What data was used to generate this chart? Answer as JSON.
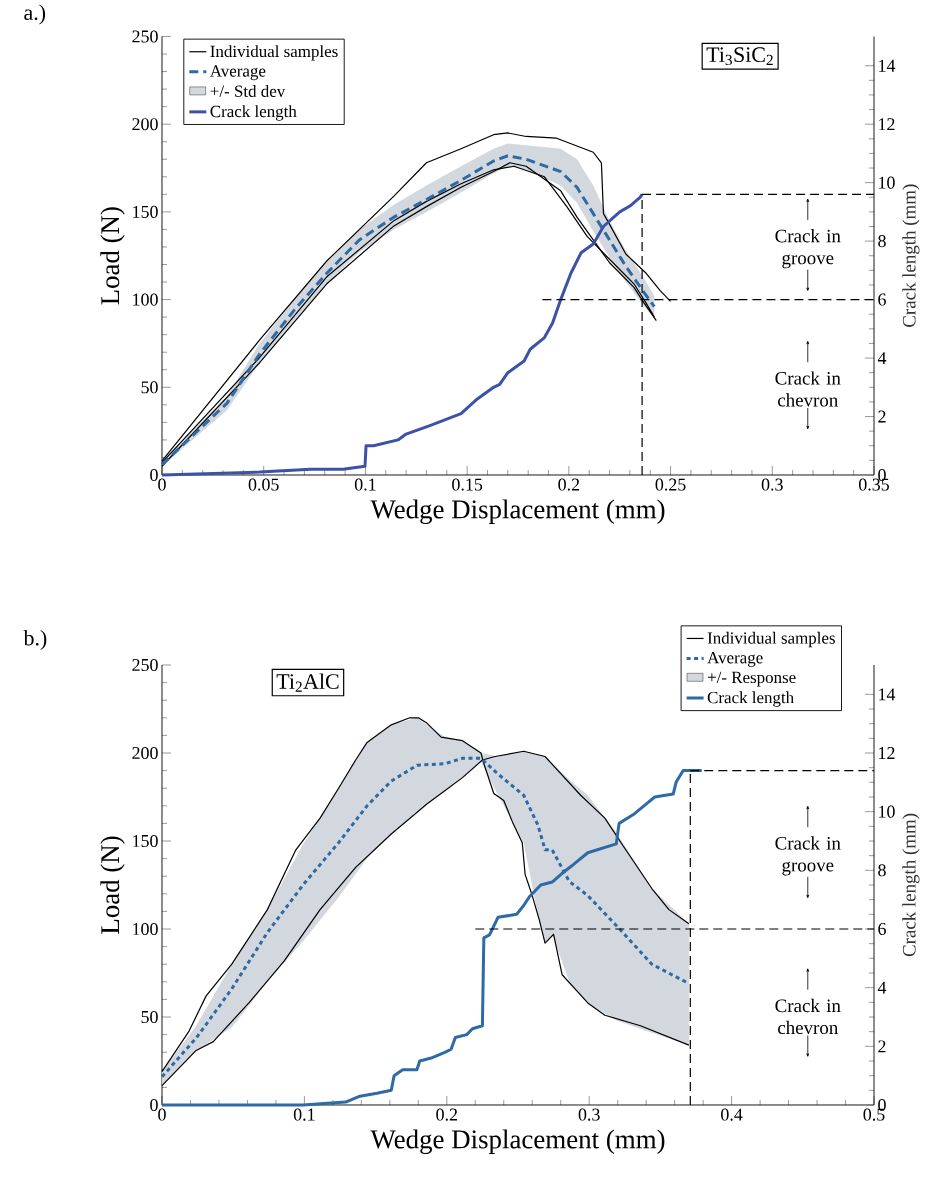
{
  "chart_data": [
    {
      "type": "line",
      "xlabel": "Wedge Displacement (mm)",
      "ylabel": "Load (N)",
      "y2label": "Crack length (mm)",
      "xlim": [
        0,
        0.35
      ],
      "xticks": [
        0,
        0.05,
        0.1,
        0.15,
        0.2,
        0.25,
        0.3,
        0.35
      ],
      "ylim": [
        0,
        250
      ],
      "yticks": [
        0,
        50,
        100,
        150,
        200,
        250
      ],
      "y2lim": [
        0,
        15
      ],
      "y2ticks": [
        0,
        2,
        4,
        6,
        8,
        10,
        12,
        14
      ],
      "legend": "top left",
      "annotations": [
        "a.)",
        "+/- Std dev",
        "Ti$_{3}$SiC$_{2}$",
        "Crack in groove",
        "Crack in chevron"
      ],
      "series": [
        {
          "name": "Individual samples",
          "color": "#000000",
          "line_style": "solid",
          "x": [
            0,
            0.048,
            0.081,
            0.114,
            0.13,
            0.147,
            0.163,
            0.17,
            0.179,
            0.194,
            0.212,
            0.216,
            0.217,
            0.219,
            0.228,
            0.238,
            0.245,
            0.25
          ],
          "values": [
            8,
            77,
            122,
            159,
            178,
            186,
            194,
            195,
            193,
            192,
            184,
            178,
            149,
            145,
            126,
            115,
            105,
            99
          ]
        },
        {
          "color": "#000000",
          "line_style": "solid",
          "x": [
            0,
            0.048,
            0.081,
            0.114,
            0.13,
            0.147,
            0.163,
            0.171,
            0.179,
            0.196,
            0.204,
            0.212,
            0.22,
            0.232,
            0.237,
            0.243
          ],
          "values": [
            5,
            64,
            109,
            142,
            153,
            164,
            173,
            178,
            176,
            162,
            147,
            134,
            121,
            107,
            98,
            88
          ]
        },
        {
          "color": "#000000",
          "line_style": "solid",
          "x": [
            0,
            0.048,
            0.081,
            0.114,
            0.13,
            0.147,
            0.163,
            0.173,
            0.188,
            0.199,
            0.209,
            0.22,
            0.232,
            0.238,
            0.242
          ],
          "values": [
            7,
            67,
            113,
            145,
            156,
            166,
            174,
            176,
            170,
            153,
            136,
            123,
            109,
            98,
            90
          ]
        },
        {
          "name": "Average",
          "color": "#2e6aa6",
          "line_style": "dashed",
          "x": [
            0,
            0.032,
            0.048,
            0.065,
            0.081,
            0.097,
            0.114,
            0.13,
            0.147,
            0.163,
            0.17,
            0.179,
            0.196,
            0.204,
            0.212,
            0.22,
            0.228,
            0.237,
            0.242
          ],
          "values": [
            6,
            41,
            69,
            94,
            115,
            134,
            147,
            157,
            168,
            179,
            182,
            180,
            173,
            164,
            149,
            134,
            119,
            104,
            96
          ],
          "lower": [
            5,
            37,
            64,
            88,
            109,
            127,
            140,
            150,
            161,
            172,
            176,
            174,
            165,
            155,
            139,
            124,
            110,
            96,
            90
          ],
          "upper": [
            8,
            45,
            75,
            100,
            121,
            140,
            154,
            165,
            176,
            186,
            189,
            188,
            186,
            180,
            165,
            145,
            128,
            112,
            102
          ]
        },
        {
          "name": "Crack length",
          "color": "#3c52a8",
          "line_style": "solid",
          "axis": "y2",
          "x": [
            0,
            0.048,
            0.073,
            0.089,
            0.0998,
            0.1003,
            0.104,
            0.116,
            0.12,
            0.132,
            0.147,
            0.155,
            0.163,
            0.166,
            0.17,
            0.178,
            0.181,
            0.188,
            0.192,
            0.196,
            0.201,
            0.206,
            0.212,
            0.217,
            0.225,
            0.23,
            0.235,
            0.236
          ],
          "values": [
            0,
            0.1,
            0.2,
            0.2,
            0.3,
            1.0,
            1.0,
            1.2,
            1.4,
            1.7,
            2.1,
            2.6,
            3.0,
            3.1,
            3.5,
            3.9,
            4.3,
            4.7,
            5.2,
            6.0,
            6.9,
            7.6,
            7.9,
            8.5,
            9.0,
            9.2,
            9.5,
            9.6
          ]
        },
        {
          "color": "#000000",
          "line_style": "dashed",
          "axis": "y2",
          "x": [
            0.236,
            0.236
          ],
          "values": [
            0,
            9.6
          ]
        },
        {
          "color": "#000000",
          "line_style": "dashed",
          "axis": "y2",
          "x": [
            0.236,
            0.35
          ],
          "values": [
            9.6,
            9.6
          ]
        },
        {
          "color": "#000000",
          "line_style": "dashed",
          "axis": "y2",
          "x": [
            0.187,
            0.35
          ],
          "values": [
            6,
            6
          ]
        }
      ]
    },
    {
      "type": "line",
      "xlabel": "Wedge Displacement (mm)",
      "ylabel": "Load (N)",
      "y2label": "Crack length (mm)",
      "xlim": [
        0,
        0.5
      ],
      "xticks": [
        0,
        0.1,
        0.2,
        0.3,
        0.4,
        0.5
      ],
      "ylim": [
        0,
        250
      ],
      "yticks": [
        0,
        50,
        100,
        150,
        200,
        250
      ],
      "y2lim": [
        0,
        15
      ],
      "y2ticks": [
        0,
        2,
        4,
        6,
        8,
        10,
        12,
        14
      ],
      "legend": "top right",
      "annotations": [
        "b.)",
        "+/- Response",
        "Ti$_{2}$AlC",
        "Crack in groove",
        "Crack in chevron"
      ],
      "series": [
        {
          "name": "Individual samples",
          "color": "#000000",
          "line_style": "solid",
          "x": [
            0,
            0.019,
            0.031,
            0.049,
            0.074,
            0.094,
            0.111,
            0.124,
            0.136,
            0.144,
            0.161,
            0.174,
            0.18,
            0.186,
            0.196,
            0.211,
            0.224,
            0.226,
            0.233,
            0.24,
            0.246,
            0.253,
            0.255,
            0.26,
            0.265,
            0.269,
            0.275,
            0.281,
            0.299,
            0.311,
            0.336,
            0.37
          ],
          "values": [
            19,
            42,
            62,
            80,
            111,
            145,
            163,
            180,
            196,
            206,
            216,
            220,
            220,
            217,
            209,
            207,
            200,
            194,
            177,
            173,
            161,
            149,
            131,
            119,
            105,
            92,
            97,
            74,
            58,
            51,
            45,
            34
          ]
        },
        {
          "color": "#000000",
          "line_style": "solid",
          "x": [
            0,
            0.024,
            0.036,
            0.061,
            0.086,
            0.111,
            0.136,
            0.161,
            0.186,
            0.211,
            0.225,
            0.234,
            0.254,
            0.269,
            0.294,
            0.311,
            0.324,
            0.344,
            0.356,
            0.37
          ],
          "values": [
            11,
            31,
            36,
            58,
            82,
            111,
            135,
            154,
            171,
            186,
            196,
            198,
            201,
            198,
            176,
            163,
            147,
            123,
            111,
            103
          ]
        },
        {
          "name": "Average",
          "color": "#2e6aa6",
          "line_style": "dotted",
          "x": [
            0,
            0.024,
            0.049,
            0.074,
            0.099,
            0.124,
            0.144,
            0.161,
            0.179,
            0.199,
            0.211,
            0.224,
            0.236,
            0.254,
            0.264,
            0.269,
            0.274,
            0.286,
            0.299,
            0.319,
            0.344,
            0.37
          ],
          "values": [
            16,
            38,
            66,
            98,
            125,
            149,
            170,
            184,
            193,
            194,
            197,
            197,
            188,
            176,
            159,
            145,
            145,
            127,
            119,
            102,
            80,
            69
          ],
          "lower": [
            11,
            31,
            44,
            70,
            93,
            118,
            140,
            154,
            167,
            178,
            186,
            195,
            176,
            149,
            108,
            92,
            97,
            70,
            58,
            48,
            41,
            34
          ],
          "upper": [
            19,
            45,
            80,
            111,
            148,
            180,
            206,
            216,
            220,
            209,
            207,
            200,
            198,
            201,
            199,
            198,
            194,
            185,
            176,
            155,
            123,
            103
          ]
        },
        {
          "name": "Crack length",
          "color": "#2e6aa6",
          "line_style": "solid",
          "axis": "y2",
          "x": [
            0,
            0.099,
            0.129,
            0.139,
            0.151,
            0.161,
            0.163,
            0.169,
            0.179,
            0.181,
            0.189,
            0.199,
            0.203,
            0.206,
            0.214,
            0.218,
            0.225,
            0.226,
            0.23,
            0.236,
            0.249,
            0.254,
            0.258,
            0.266,
            0.274,
            0.281,
            0.289,
            0.299,
            0.319,
            0.321,
            0.331,
            0.341,
            0.346,
            0.359,
            0.361,
            0.366,
            0.379
          ],
          "values": [
            0,
            0,
            0.1,
            0.3,
            0.4,
            0.5,
            1.0,
            1.2,
            1.2,
            1.5,
            1.6,
            1.8,
            1.9,
            2.3,
            2.4,
            2.6,
            2.7,
            5.7,
            5.8,
            6.4,
            6.5,
            6.8,
            7.1,
            7.5,
            7.6,
            7.9,
            8.2,
            8.6,
            8.9,
            9.6,
            9.9,
            10.3,
            10.5,
            10.6,
            11.0,
            11.4,
            11.4
          ]
        },
        {
          "color": "#000000",
          "line_style": "dashed",
          "axis": "y2",
          "x": [
            0.371,
            0.371
          ],
          "values": [
            0,
            11.4
          ]
        },
        {
          "color": "#000000",
          "line_style": "dashed",
          "axis": "y2",
          "x": [
            0.371,
            0.5
          ],
          "values": [
            11.4,
            11.4
          ]
        },
        {
          "color": "#000000",
          "line_style": "dashed",
          "axis": "y2",
          "x": [
            0.22,
            0.5
          ],
          "values": [
            6,
            6
          ]
        }
      ]
    }
  ]
}
